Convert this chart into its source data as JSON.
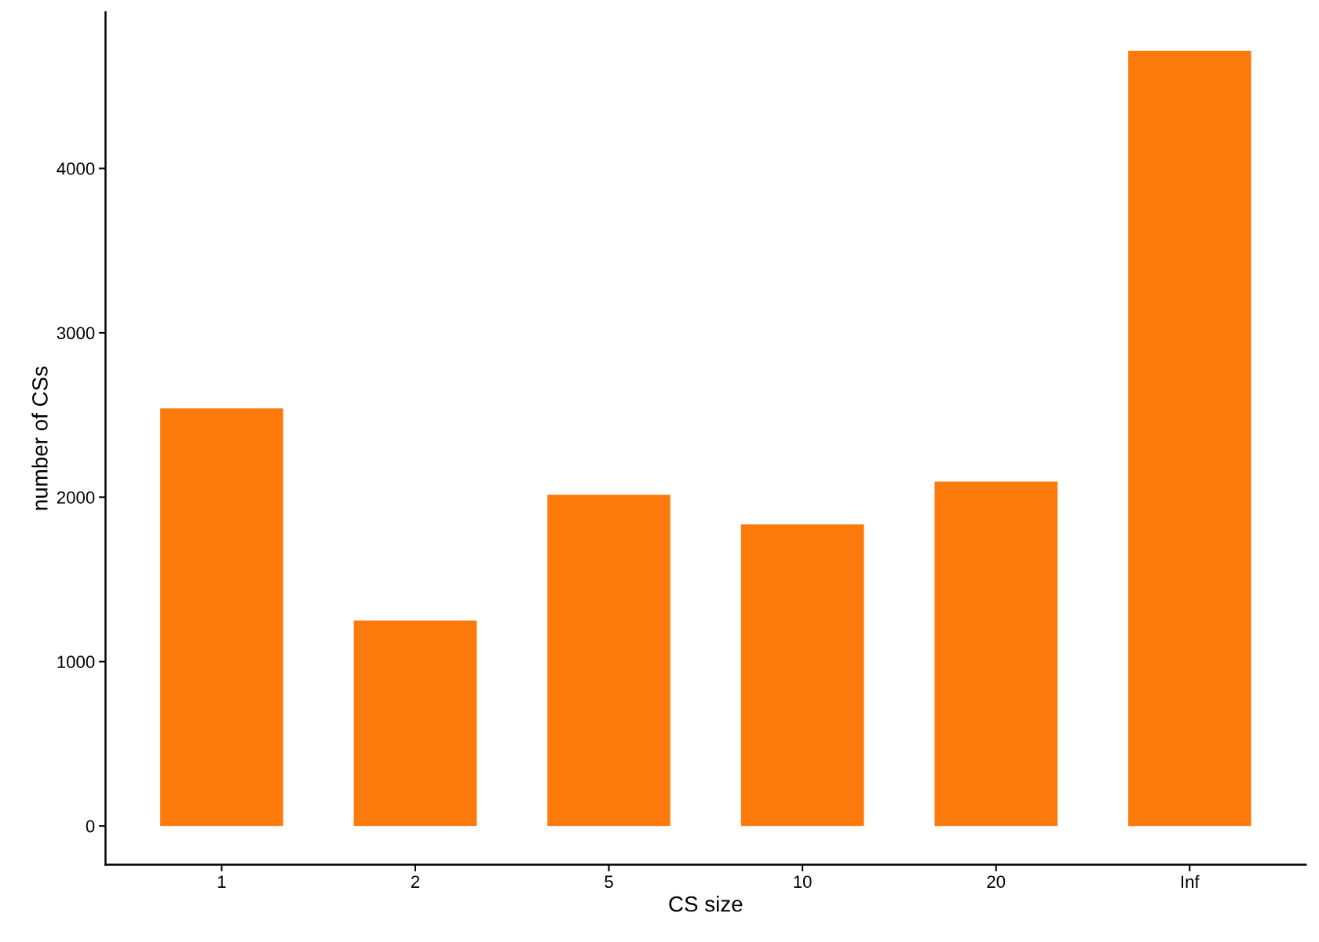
{
  "chart_data": {
    "type": "bar",
    "xlabel": "CS size",
    "ylabel": "number of CSs",
    "categories": [
      "1",
      "2",
      "5",
      "10",
      "20",
      "Inf"
    ],
    "values": [
      2540,
      1250,
      2015,
      1835,
      2095,
      4715
    ],
    "color": "#fc7a0c",
    "ylim": [
      -236,
      4950
    ],
    "yticks": [
      0,
      1000,
      2000,
      3000,
      4000
    ],
    "grid": false
  }
}
